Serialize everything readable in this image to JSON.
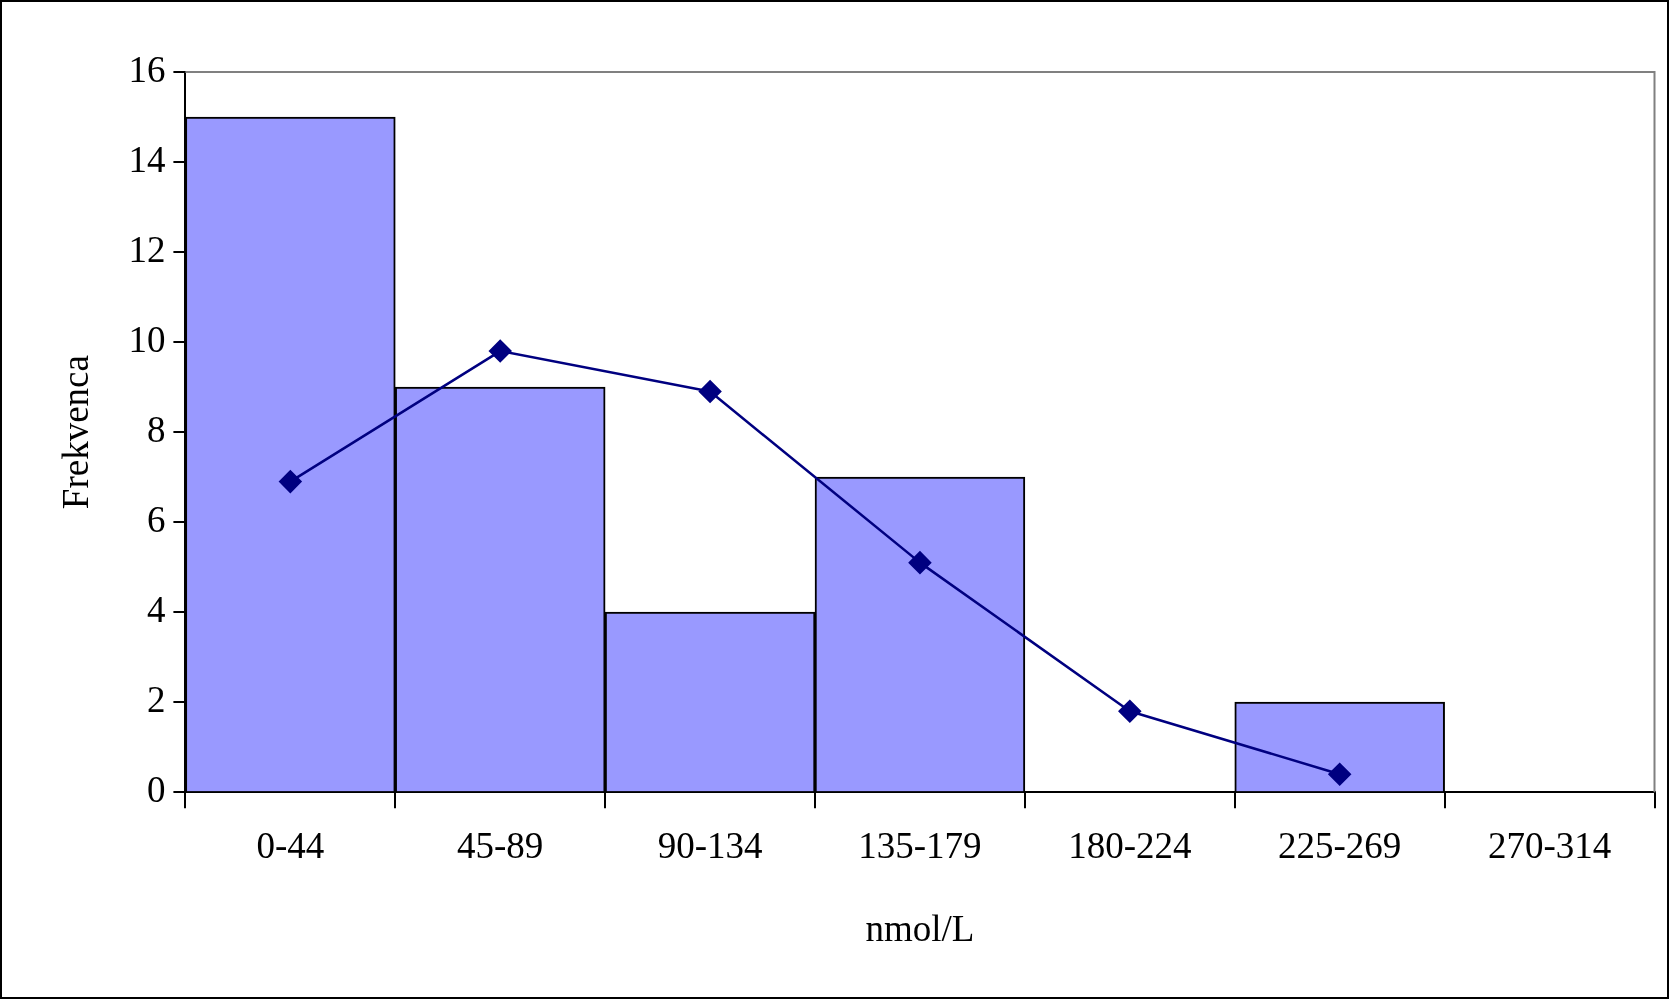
{
  "chart_data": {
    "type": "bar",
    "xlabel": "nmol/L",
    "ylabel": "Frekvenca",
    "categories": [
      "0-44",
      "45-89",
      "90-134",
      "135-179",
      "180-224",
      "225-269",
      "270-314"
    ],
    "series": [
      {
        "color": "#9999ff",
        "values": [
          15,
          9,
          4,
          7,
          0,
          2,
          0
        ]
      },
      {
        "type": "line",
        "color": "#000080",
        "values": [
          6.9,
          9.8,
          8.9,
          5.1,
          1.8,
          0.4,
          null
        ]
      }
    ],
    "ylim": [
      0,
      16
    ],
    "yticks": [
      0,
      2,
      4,
      6,
      8,
      10,
      12,
      14,
      16
    ],
    "grid": false,
    "legend": false,
    "marker": "diamond",
    "line_style": "solid"
  }
}
